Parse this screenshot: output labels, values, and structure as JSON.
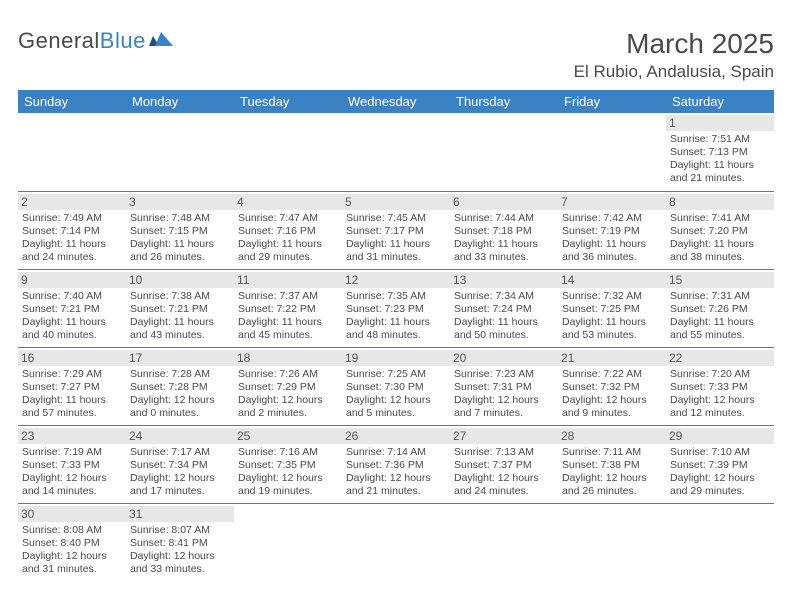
{
  "logo": {
    "part1": "General",
    "part2": "Blue"
  },
  "title": "March 2025",
  "location": "El Rubio, Andalusia, Spain",
  "colors": {
    "header_bg": "#3b82c4",
    "header_text": "#ffffff",
    "daynum_bg": "#e7e7e7",
    "border": "#3b82c4",
    "text": "#4a4a4a"
  },
  "day_names": [
    "Sunday",
    "Monday",
    "Tuesday",
    "Wednesday",
    "Thursday",
    "Friday",
    "Saturday"
  ],
  "weeks": [
    [
      null,
      null,
      null,
      null,
      null,
      null,
      {
        "n": "1",
        "sr": "Sunrise: 7:51 AM",
        "ss": "Sunset: 7:13 PM",
        "dl": "Daylight: 11 hours and 21 minutes."
      }
    ],
    [
      {
        "n": "2",
        "sr": "Sunrise: 7:49 AM",
        "ss": "Sunset: 7:14 PM",
        "dl": "Daylight: 11 hours and 24 minutes."
      },
      {
        "n": "3",
        "sr": "Sunrise: 7:48 AM",
        "ss": "Sunset: 7:15 PM",
        "dl": "Daylight: 11 hours and 26 minutes."
      },
      {
        "n": "4",
        "sr": "Sunrise: 7:47 AM",
        "ss": "Sunset: 7:16 PM",
        "dl": "Daylight: 11 hours and 29 minutes."
      },
      {
        "n": "5",
        "sr": "Sunrise: 7:45 AM",
        "ss": "Sunset: 7:17 PM",
        "dl": "Daylight: 11 hours and 31 minutes."
      },
      {
        "n": "6",
        "sr": "Sunrise: 7:44 AM",
        "ss": "Sunset: 7:18 PM",
        "dl": "Daylight: 11 hours and 33 minutes."
      },
      {
        "n": "7",
        "sr": "Sunrise: 7:42 AM",
        "ss": "Sunset: 7:19 PM",
        "dl": "Daylight: 11 hours and 36 minutes."
      },
      {
        "n": "8",
        "sr": "Sunrise: 7:41 AM",
        "ss": "Sunset: 7:20 PM",
        "dl": "Daylight: 11 hours and 38 minutes."
      }
    ],
    [
      {
        "n": "9",
        "sr": "Sunrise: 7:40 AM",
        "ss": "Sunset: 7:21 PM",
        "dl": "Daylight: 11 hours and 40 minutes."
      },
      {
        "n": "10",
        "sr": "Sunrise: 7:38 AM",
        "ss": "Sunset: 7:21 PM",
        "dl": "Daylight: 11 hours and 43 minutes."
      },
      {
        "n": "11",
        "sr": "Sunrise: 7:37 AM",
        "ss": "Sunset: 7:22 PM",
        "dl": "Daylight: 11 hours and 45 minutes."
      },
      {
        "n": "12",
        "sr": "Sunrise: 7:35 AM",
        "ss": "Sunset: 7:23 PM",
        "dl": "Daylight: 11 hours and 48 minutes."
      },
      {
        "n": "13",
        "sr": "Sunrise: 7:34 AM",
        "ss": "Sunset: 7:24 PM",
        "dl": "Daylight: 11 hours and 50 minutes."
      },
      {
        "n": "14",
        "sr": "Sunrise: 7:32 AM",
        "ss": "Sunset: 7:25 PM",
        "dl": "Daylight: 11 hours and 53 minutes."
      },
      {
        "n": "15",
        "sr": "Sunrise: 7:31 AM",
        "ss": "Sunset: 7:26 PM",
        "dl": "Daylight: 11 hours and 55 minutes."
      }
    ],
    [
      {
        "n": "16",
        "sr": "Sunrise: 7:29 AM",
        "ss": "Sunset: 7:27 PM",
        "dl": "Daylight: 11 hours and 57 minutes."
      },
      {
        "n": "17",
        "sr": "Sunrise: 7:28 AM",
        "ss": "Sunset: 7:28 PM",
        "dl": "Daylight: 12 hours and 0 minutes."
      },
      {
        "n": "18",
        "sr": "Sunrise: 7:26 AM",
        "ss": "Sunset: 7:29 PM",
        "dl": "Daylight: 12 hours and 2 minutes."
      },
      {
        "n": "19",
        "sr": "Sunrise: 7:25 AM",
        "ss": "Sunset: 7:30 PM",
        "dl": "Daylight: 12 hours and 5 minutes."
      },
      {
        "n": "20",
        "sr": "Sunrise: 7:23 AM",
        "ss": "Sunset: 7:31 PM",
        "dl": "Daylight: 12 hours and 7 minutes."
      },
      {
        "n": "21",
        "sr": "Sunrise: 7:22 AM",
        "ss": "Sunset: 7:32 PM",
        "dl": "Daylight: 12 hours and 9 minutes."
      },
      {
        "n": "22",
        "sr": "Sunrise: 7:20 AM",
        "ss": "Sunset: 7:33 PM",
        "dl": "Daylight: 12 hours and 12 minutes."
      }
    ],
    [
      {
        "n": "23",
        "sr": "Sunrise: 7:19 AM",
        "ss": "Sunset: 7:33 PM",
        "dl": "Daylight: 12 hours and 14 minutes."
      },
      {
        "n": "24",
        "sr": "Sunrise: 7:17 AM",
        "ss": "Sunset: 7:34 PM",
        "dl": "Daylight: 12 hours and 17 minutes."
      },
      {
        "n": "25",
        "sr": "Sunrise: 7:16 AM",
        "ss": "Sunset: 7:35 PM",
        "dl": "Daylight: 12 hours and 19 minutes."
      },
      {
        "n": "26",
        "sr": "Sunrise: 7:14 AM",
        "ss": "Sunset: 7:36 PM",
        "dl": "Daylight: 12 hours and 21 minutes."
      },
      {
        "n": "27",
        "sr": "Sunrise: 7:13 AM",
        "ss": "Sunset: 7:37 PM",
        "dl": "Daylight: 12 hours and 24 minutes."
      },
      {
        "n": "28",
        "sr": "Sunrise: 7:11 AM",
        "ss": "Sunset: 7:38 PM",
        "dl": "Daylight: 12 hours and 26 minutes."
      },
      {
        "n": "29",
        "sr": "Sunrise: 7:10 AM",
        "ss": "Sunset: 7:39 PM",
        "dl": "Daylight: 12 hours and 29 minutes."
      }
    ],
    [
      {
        "n": "30",
        "sr": "Sunrise: 8:08 AM",
        "ss": "Sunset: 8:40 PM",
        "dl": "Daylight: 12 hours and 31 minutes."
      },
      {
        "n": "31",
        "sr": "Sunrise: 8:07 AM",
        "ss": "Sunset: 8:41 PM",
        "dl": "Daylight: 12 hours and 33 minutes."
      },
      null,
      null,
      null,
      null,
      null
    ]
  ]
}
